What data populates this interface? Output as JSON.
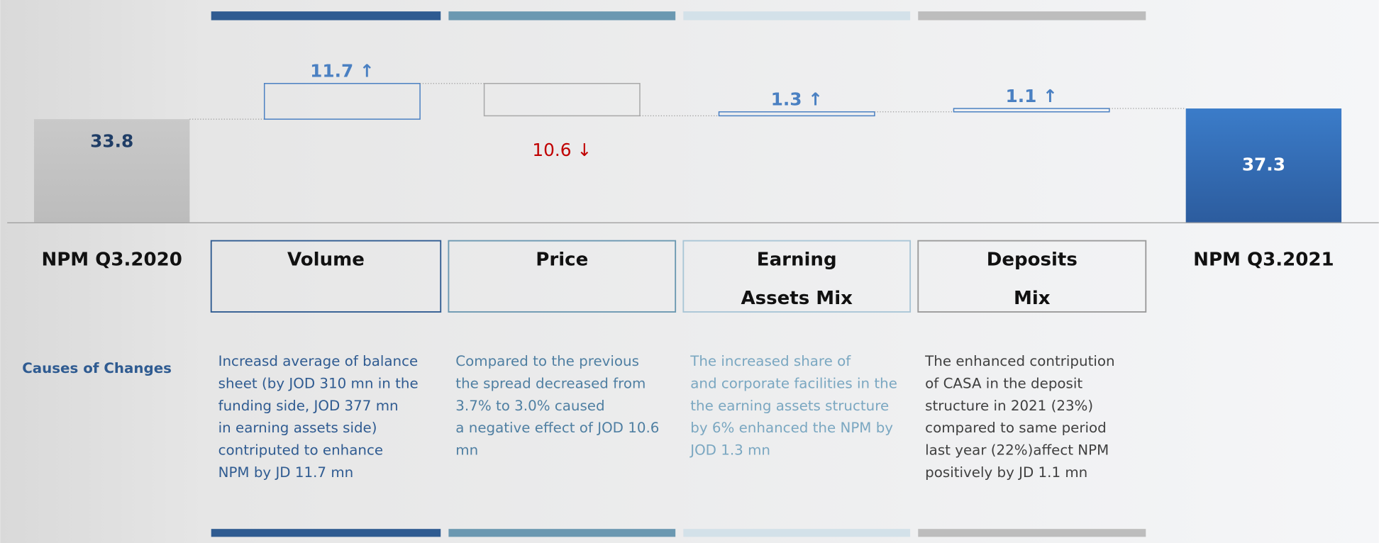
{
  "chart_data": {
    "type": "waterfall",
    "categories": [
      "NPM Q3.2020",
      "Volume",
      "Price",
      "Earning\nAssets Mix",
      "Deposits\nMix",
      "NPM Q3.2021"
    ],
    "values": [
      33.8,
      11.7,
      -10.6,
      1.3,
      1.1,
      37.3
    ],
    "value_labels": [
      "33.8",
      "11.7 ↑",
      "10.6 ↓",
      "1.3 ↑",
      "1.1 ↑",
      "37.3"
    ],
    "totals": [
      true,
      false,
      false,
      false,
      false,
      true
    ],
    "colors": [
      "#c4c4c4",
      "#2f5b91",
      "#6b98b1",
      "#d3e1e9",
      "#bdbdbd",
      "#3877c4"
    ],
    "increase_color": "#4a80c2",
    "decrease_color": "#c00000",
    "side_label": "Causes of Changes",
    "descriptions": [
      [
        "Increasd average of balance",
        "sheet (by JOD 310 mn in the",
        "funding side, JOD  377 mn",
        " in earning assets side)",
        "contriputed to enhance",
        "NPM by JD 11.7 mn"
      ],
      [
        "Compared to the previous",
        "the spread decreased from",
        "3.7% to 3.0% caused",
        "a negative effect of JOD 10.6",
        "mn"
      ],
      [
        "The increased share of",
        "and corporate facilities in the",
        "the earning assets structure",
        "by 6% enhanced the NPM by",
        "JOD 1.3 mn"
      ],
      [
        "The enhanced contripution",
        "of CASA in the deposit",
        "structure in 2021 (23%)",
        "compared to same period",
        "last year (22%)affect NPM",
        "positively by JD 1.1 mn"
      ]
    ],
    "description_colors": [
      "#2f5b91",
      "#4f7fa2",
      "#7aa7c1",
      "#404040"
    ]
  }
}
